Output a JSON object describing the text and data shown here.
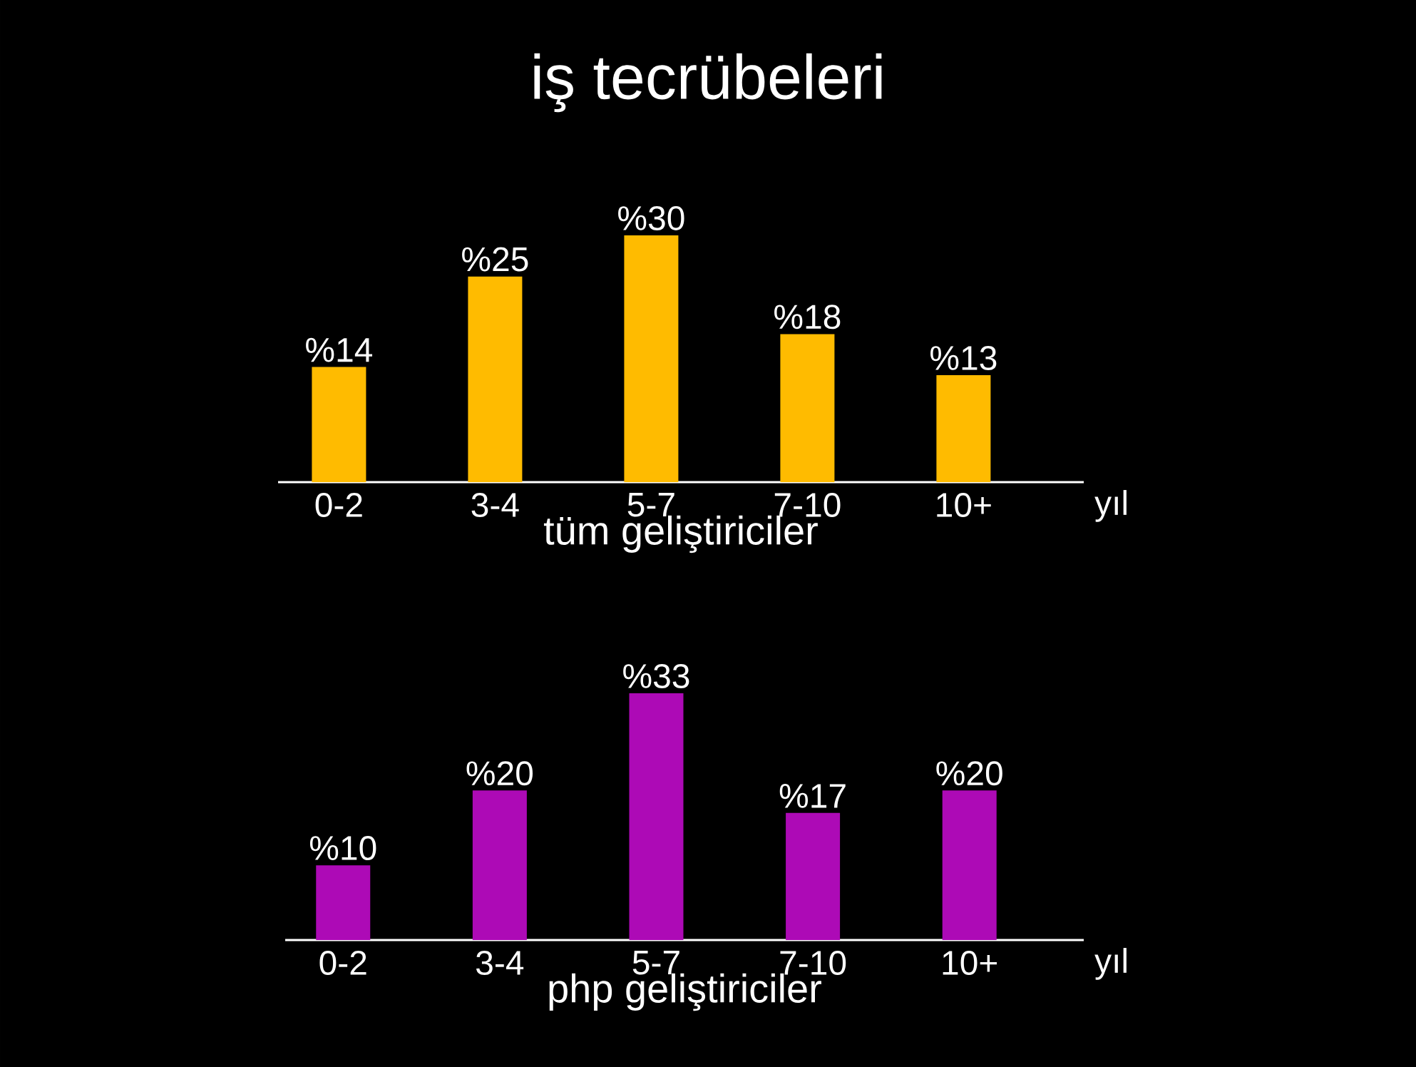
{
  "chart_data": [
    {
      "type": "bar",
      "title": "iş tecrübeleri",
      "xlabel": "tüm geliştiriciler",
      "categories": [
        "0-2",
        "3-4",
        "5-7",
        "7-10",
        "10+"
      ],
      "values": [
        14,
        25,
        30,
        18,
        13
      ],
      "value_labels": [
        "%14",
        "%25",
        "%30",
        "%18",
        "%13"
      ],
      "color": "#ffbb00",
      "annotations": [
        "yıl"
      ]
    },
    {
      "type": "bar",
      "xlabel": "php geliştiriciler",
      "categories": [
        "0-2",
        "3-4",
        "5-7",
        "7-10",
        "10+"
      ],
      "values": [
        10,
        20,
        33,
        17,
        20
      ],
      "value_labels": [
        "%10",
        "%20",
        "%33",
        "%17",
        "%20"
      ],
      "color": "#ad0ab6",
      "annotations": [
        "yıl"
      ]
    }
  ]
}
